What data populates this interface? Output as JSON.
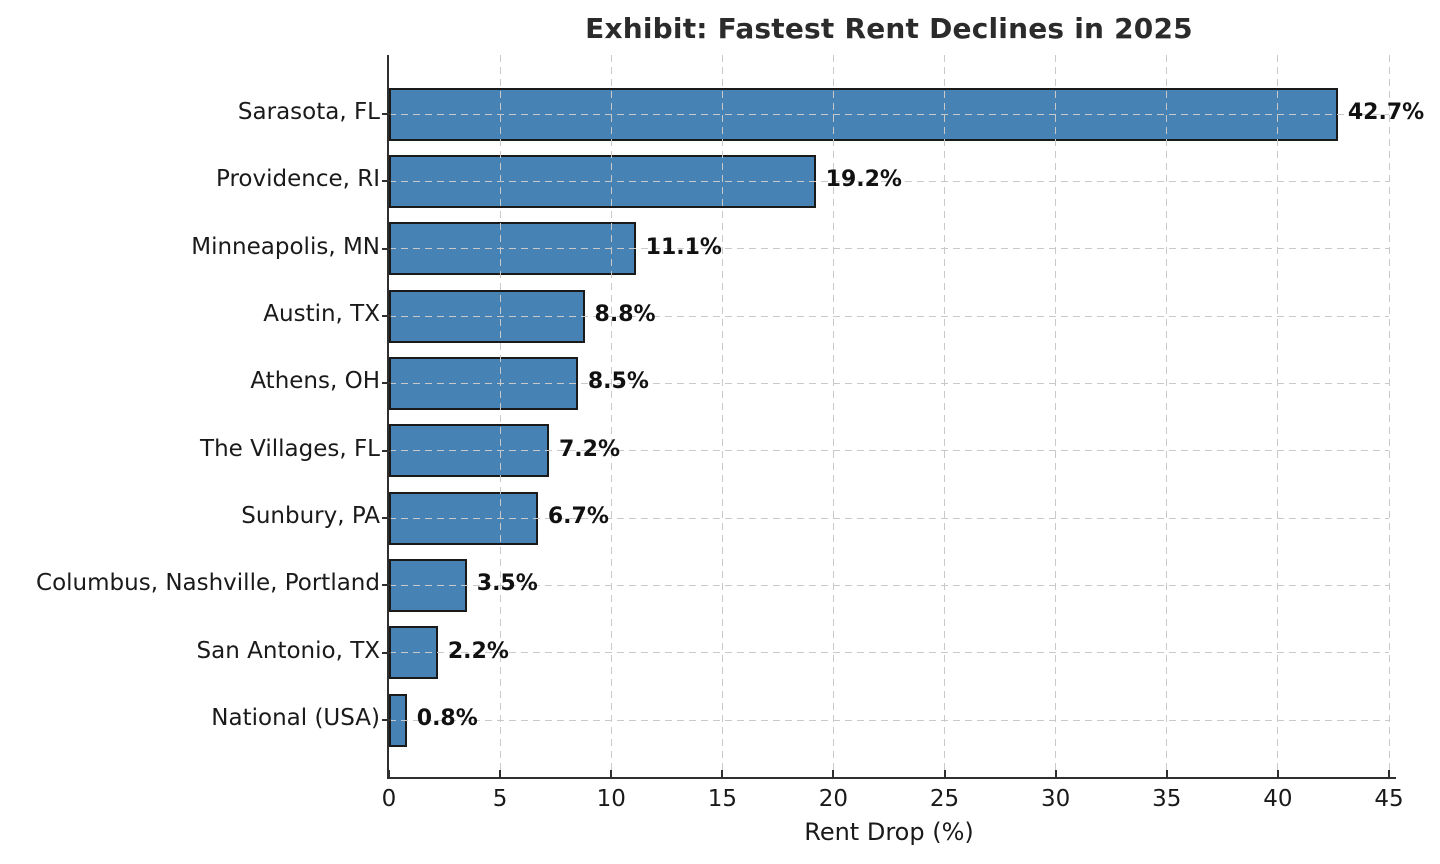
{
  "chart_data": {
    "type": "bar",
    "orientation": "horizontal",
    "title": "Exhibit: Fastest Rent Declines in 2025",
    "xlabel": "Rent Drop (%)",
    "ylabel": "",
    "categories": [
      "Sarasota, FL",
      "Providence, RI",
      "Minneapolis, MN",
      "Austin, TX",
      "Athens, OH",
      "The Villages, FL",
      "Sunbury, PA",
      "Columbus, Nashville, Portland",
      "San Antonio, TX",
      "National (USA)"
    ],
    "values": [
      42.7,
      19.2,
      11.1,
      8.8,
      8.5,
      7.2,
      6.7,
      3.5,
      2.2,
      0.8
    ],
    "value_labels": [
      "42.7%",
      "19.2%",
      "11.1%",
      "8.8%",
      "8.5%",
      "7.2%",
      "6.7%",
      "3.5%",
      "2.2%",
      "0.8%"
    ],
    "xlim": [
      0,
      45
    ],
    "xticks": [
      0,
      5,
      10,
      15,
      20,
      25,
      30,
      35,
      40,
      45
    ],
    "grid": {
      "style": "dashed",
      "axes": "both",
      "above_bars": true
    },
    "legend": null,
    "colors": {
      "bar_fill": "#4682b4",
      "bar_edge": "#1a1a1a",
      "grid": "#c9c9c9",
      "spine": "#2f2f2f",
      "text": "#1a1a1a",
      "title_text": "#2b2b2b"
    }
  }
}
